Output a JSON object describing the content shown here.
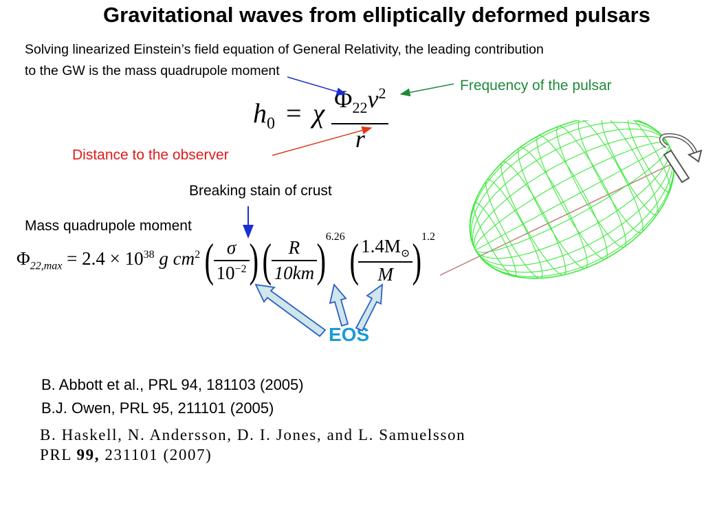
{
  "title": "Gravitational waves from elliptically deformed pulsars",
  "intro": {
    "line1": "Solving linearized Einstein’s field equation of General Relativity, the leading contribution",
    "line2": "to the GW is the mass quadrupole moment"
  },
  "labels": {
    "frequency": "Frequency of the pulsar",
    "distance": "Distance to the observer",
    "breaking_strain": "Breaking stain of crust",
    "mass_quadrupole": "Mass quadrupole moment",
    "eos": "EOS"
  },
  "equation1": {
    "lhs": "h",
    "lhs_sub": "0",
    "equals": "=",
    "chi": "χ",
    "phi": "Φ",
    "phi_sub": "22",
    "nu": "ν",
    "nu_exp": "2",
    "r": "r"
  },
  "equation2": {
    "phi": "Φ",
    "phi_sub": "22,max",
    "eq_prefix": "= 2.4 × 10",
    "exp38": "38",
    "units": "g cm",
    "units_exp": "2",
    "sigma": "σ",
    "sigma_den": "10",
    "sigma_den_exp": "−2",
    "r_num": "R",
    "r_den": "10km",
    "r_exp": "6.26",
    "m_num": "1.4M",
    "m_num_sub": "⊙",
    "m_den": "M",
    "m_exp": "1.2"
  },
  "references": [
    "B. Abbott et al., PRL 94, 181103 (2005)",
    "B.J. Owen, PRL 95, 211101 (2005)"
  ],
  "reference_haskell": {
    "line1": "B. Haskell, N. Andersson, D. I. Jones, and L. Samuelsson",
    "prl": "PRL",
    "volume": "99,",
    "rest": "231101 (2007)"
  },
  "colors": {
    "frequency_label": "#1e8a3c",
    "distance_label": "#e01a1a",
    "eos": "#1a9bd9",
    "mesh": "#3ee83e",
    "block_arrow_fill": "#cfe6ea",
    "block_arrow_stroke": "#2a5ec8"
  }
}
